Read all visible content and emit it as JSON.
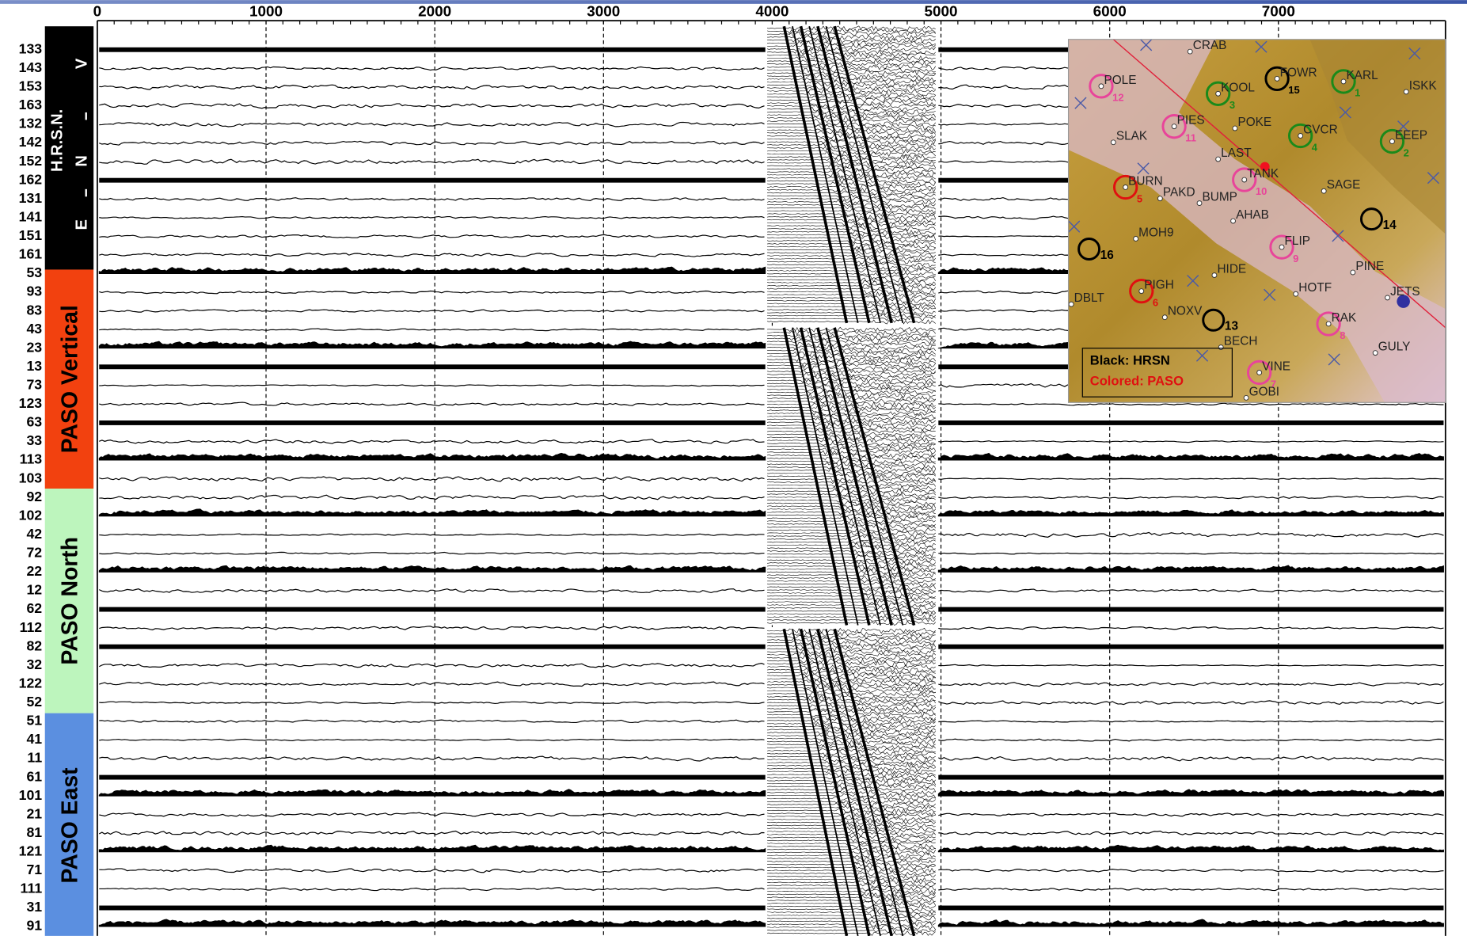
{
  "axis": {
    "ticks": [
      0,
      1000,
      2000,
      3000,
      4000,
      5000,
      6000,
      7000
    ],
    "xlim": [
      0,
      7990
    ]
  },
  "traces": [
    "133",
    "143",
    "153",
    "163",
    "132",
    "142",
    "152",
    "162",
    "131",
    "141",
    "151",
    "161",
    "53",
    "93",
    "83",
    "43",
    "23",
    "13",
    "73",
    "123",
    "63",
    "33",
    "113",
    "103",
    "92",
    "102",
    "42",
    "72",
    "22",
    "12",
    "62",
    "112",
    "82",
    "32",
    "122",
    "52",
    "51",
    "41",
    "11",
    "61",
    "101",
    "21",
    "81",
    "121",
    "71",
    "111",
    "31",
    "91"
  ],
  "groups": {
    "hrsn": "H.R.S.N.",
    "components": [
      "V",
      "N",
      "E"
    ],
    "vertical": "PASO Vertical",
    "north": "PASO North",
    "east": "PASO East"
  },
  "map": {
    "stations": [
      {
        "name": "CRAB"
      },
      {
        "name": "POLE",
        "number": 12
      },
      {
        "name": "KOOL",
        "number": 3
      },
      {
        "name": "FOWR",
        "number": 15
      },
      {
        "name": "KARL",
        "number": 1
      },
      {
        "name": "ISKK"
      },
      {
        "name": "PIES",
        "number": 11
      },
      {
        "name": "POKE"
      },
      {
        "name": "CVCR",
        "number": 4
      },
      {
        "name": "EEEP",
        "number": 2
      },
      {
        "name": "SLAK"
      },
      {
        "name": "LAST"
      },
      {
        "name": "TANK",
        "number": 10
      },
      {
        "name": "SAGE"
      },
      {
        "name": "BURN",
        "number": 5
      },
      {
        "name": "PAKD"
      },
      {
        "name": "BUMP"
      },
      {
        "name": "AHAB"
      },
      {
        "name": "MOH9"
      },
      {
        "name": "FLIP",
        "number": 9
      },
      {
        "name": "HIDE"
      },
      {
        "name": "PINE"
      },
      {
        "name": "PIGH",
        "number": 6
      },
      {
        "name": "HOTF"
      },
      {
        "name": "JETS"
      },
      {
        "name": "DBLT"
      },
      {
        "name": "NOXV"
      },
      {
        "name": "RAK",
        "number": 8
      },
      {
        "name": "GULY"
      },
      {
        "name": "BECH"
      },
      {
        "name": "VINE",
        "number": 7
      },
      {
        "name": "GOBI"
      }
    ],
    "hrsn_marks": [
      14,
      16,
      13
    ],
    "legend": [
      "Black: HRSN",
      "Colored: PASO"
    ]
  }
}
